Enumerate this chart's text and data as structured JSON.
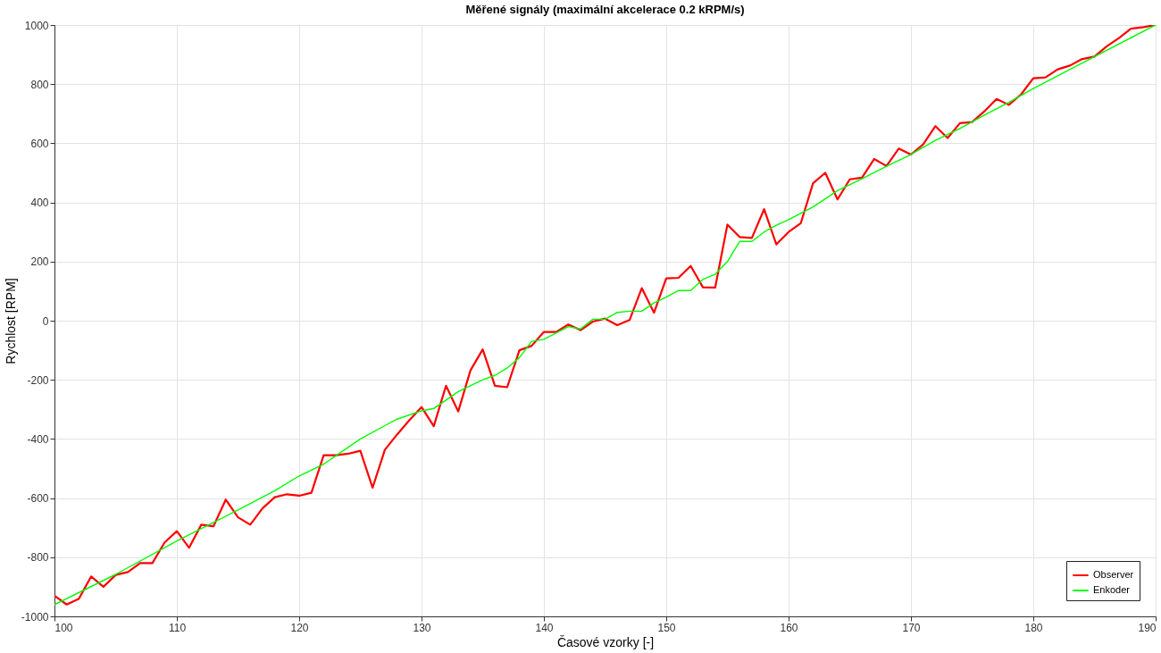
{
  "chart_data": {
    "type": "line",
    "title": "Měřené signály (maximální akcelerace 0.2 kRPM/s)",
    "xlabel": "Časové vzorky [-]",
    "ylabel": "Rychlost [RPM]",
    "xlim": [
      100,
      190
    ],
    "xticks": [
      100,
      110,
      120,
      130,
      140,
      150,
      160,
      170,
      180,
      190
    ],
    "ylim": [
      -1000,
      1000
    ],
    "yticks": [
      -1000,
      -800,
      -600,
      -400,
      -200,
      0,
      200,
      400,
      600,
      800,
      1000
    ],
    "grid": true,
    "legend": "bottom right",
    "line_style": "solid",
    "marker": "none",
    "series": [
      {
        "name": "Observer",
        "color": "#ff0000",
        "x": [
          100,
          101,
          102,
          103,
          104,
          105,
          106,
          107,
          108,
          109,
          110,
          111,
          112,
          113,
          114,
          115,
          116,
          117,
          118,
          119,
          120,
          121,
          122,
          123,
          124,
          125,
          126,
          127,
          128,
          129,
          130,
          131,
          132,
          133,
          134,
          135,
          136,
          137,
          138,
          139,
          140,
          141,
          142,
          143,
          144,
          145,
          146,
          147,
          148,
          149,
          150,
          151,
          152,
          153,
          154,
          155,
          156,
          157,
          158,
          159,
          160,
          161,
          162,
          163,
          164,
          165,
          166,
          167,
          168,
          169,
          170,
          171,
          172,
          173,
          174,
          175,
          176,
          177,
          178,
          179,
          180,
          181,
          182,
          183,
          184,
          185,
          186,
          187,
          188,
          189,
          190
        ],
        "values": [
          -930,
          -960,
          -940,
          -865,
          -900,
          -860,
          -850,
          -820,
          -820,
          -750,
          -712,
          -768,
          -690,
          -695,
          -605,
          -665,
          -690,
          -635,
          -597,
          -587,
          -592,
          -582,
          -455,
          -455,
          -450,
          -440,
          -565,
          -437,
          -385,
          -337,
          -292,
          -357,
          -220,
          -307,
          -168,
          -97,
          -220,
          -225,
          -100,
          -85,
          -38,
          -38,
          -13,
          -32,
          -3,
          7,
          -15,
          2,
          110,
          27,
          143,
          145,
          185,
          113,
          112,
          325,
          283,
          280,
          377,
          258,
          300,
          330,
          465,
          500,
          410,
          478,
          484,
          547,
          523,
          582,
          562,
          596,
          658,
          618,
          668,
          672,
          708,
          750,
          730,
          765,
          820,
          823,
          850,
          863,
          885,
          893,
          928,
          956,
          988,
          993,
          1000
        ]
      },
      {
        "name": "Enkoder",
        "color": "#00ff00",
        "x": [
          100,
          105,
          110,
          115,
          118,
          120,
          122,
          125,
          127,
          128,
          130,
          131,
          133,
          135,
          136,
          137,
          138,
          139,
          140,
          142,
          143,
          144,
          145,
          146,
          147,
          148,
          149,
          150,
          151,
          152,
          153,
          154,
          155,
          156,
          157,
          158,
          159,
          160,
          162,
          164,
          166,
          168,
          170,
          172,
          174,
          176,
          178,
          180,
          185,
          190
        ],
        "values": [
          -960,
          -858,
          -745,
          -640,
          -575,
          -525,
          -485,
          -400,
          -355,
          -333,
          -305,
          -297,
          -240,
          -200,
          -185,
          -160,
          -125,
          -70,
          -63,
          -20,
          -28,
          5,
          5,
          28,
          32,
          32,
          60,
          80,
          102,
          102,
          140,
          157,
          200,
          268,
          268,
          300,
          323,
          342,
          385,
          440,
          480,
          522,
          562,
          610,
          650,
          695,
          738,
          785,
          893,
          1000
        ]
      }
    ]
  }
}
